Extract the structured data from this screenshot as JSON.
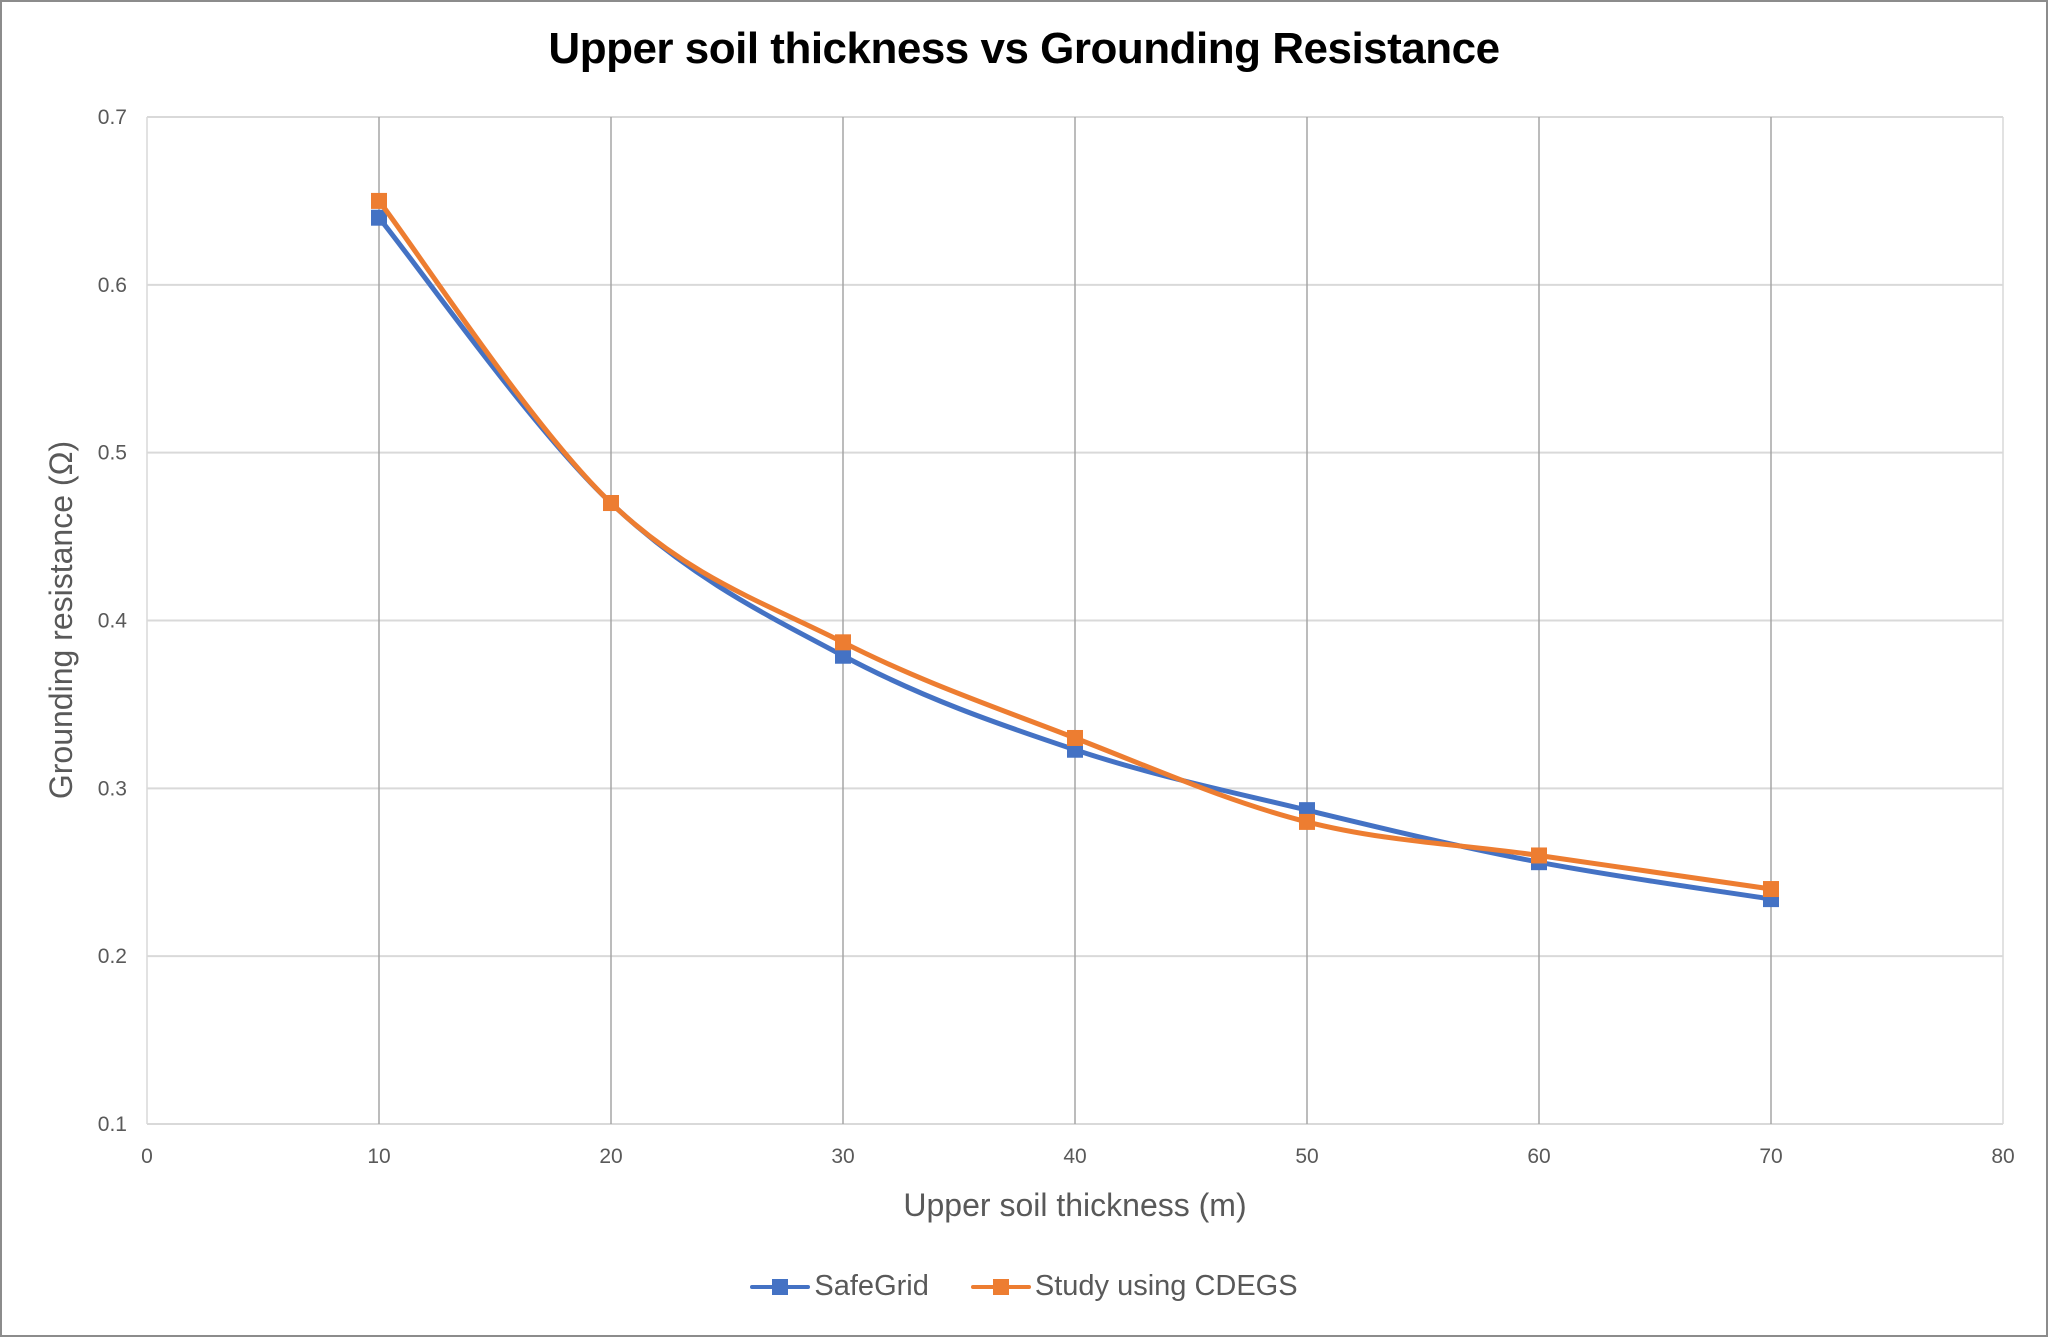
{
  "chart_data": {
    "type": "line",
    "title": "Upper soil thickness vs Grounding Resistance",
    "xlabel": "Upper soil thickness (m)",
    "ylabel": "Grounding resistance (Ω)",
    "xlim": [
      0,
      80
    ],
    "ylim": [
      0.1,
      0.7
    ],
    "x_ticks": [
      0,
      10,
      20,
      30,
      40,
      50,
      60,
      70,
      80
    ],
    "y_ticks": [
      0.1,
      0.2,
      0.3,
      0.4,
      0.5,
      0.6,
      0.7
    ],
    "grid": true,
    "legend_position": "bottom",
    "smoothed": true,
    "x": [
      10,
      20,
      30,
      40,
      50,
      60,
      70
    ],
    "series": [
      {
        "name": "SafeGrid",
        "color": "#4472C4",
        "marker": "square",
        "values": [
          0.64,
          0.47,
          0.379,
          0.323,
          0.287,
          0.256,
          0.234
        ]
      },
      {
        "name": "Study using CDEGS",
        "color": "#ED7D31",
        "marker": "square",
        "values": [
          0.65,
          0.47,
          0.387,
          0.33,
          0.28,
          0.26,
          0.24
        ]
      }
    ]
  },
  "colors": {
    "axis_text": "#595959",
    "gridline_horizontal": "#d9d9d9",
    "gridline_vertical": "#a6a6a6",
    "border": "#8c8c8c"
  }
}
